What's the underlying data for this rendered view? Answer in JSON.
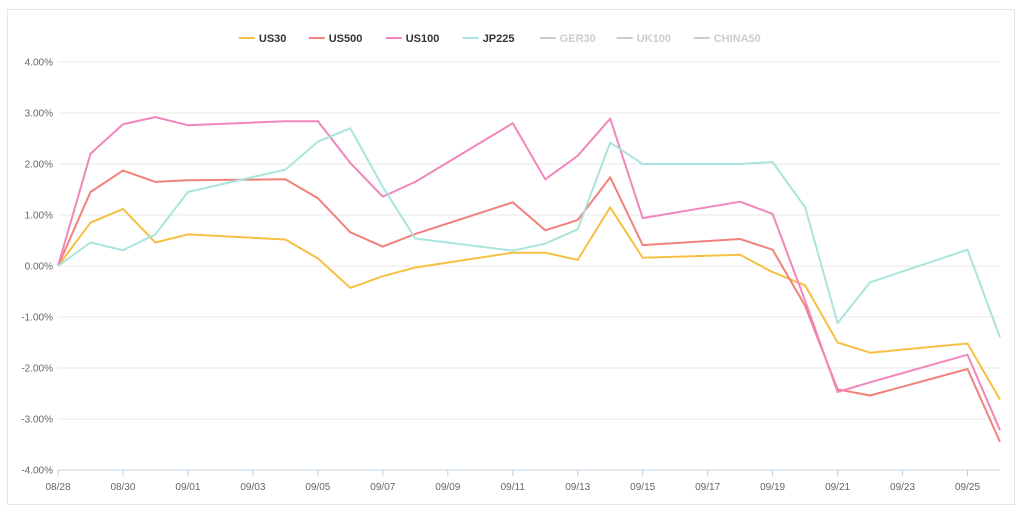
{
  "chart_data": {
    "type": "line",
    "title": "",
    "xlabel": "",
    "ylabel": "",
    "ylim": [
      -4.0,
      4.0
    ],
    "yticks": [
      "4.00%",
      "3.00%",
      "2.00%",
      "1.00%",
      "0.00%",
      "-1.00%",
      "-2.00%",
      "-3.00%",
      "-4.00%"
    ],
    "xticks": [
      "08/28",
      "08/30",
      "09/01",
      "09/03",
      "09/05",
      "09/07",
      "09/09",
      "09/11",
      "09/13",
      "09/15",
      "09/17",
      "09/19",
      "09/21",
      "09/23",
      "09/25"
    ],
    "x_start": "2025-08-28",
    "legend_position": "top-center",
    "grid": true,
    "series": [
      {
        "name": "US30",
        "color": "#f6c142",
        "visible": true,
        "x": [
          0,
          1,
          2,
          3,
          4,
          7,
          8,
          9,
          10,
          11,
          14,
          15,
          16,
          17,
          18,
          21,
          22,
          23,
          24,
          25,
          28,
          29
        ],
        "values": [
          0.0,
          0.85,
          1.12,
          0.46,
          0.62,
          0.52,
          0.15,
          -0.43,
          -0.2,
          -0.03,
          0.26,
          0.26,
          0.12,
          1.15,
          0.16,
          0.22,
          -0.12,
          -0.38,
          -1.5,
          -1.7,
          -1.52,
          -2.62
        ]
      },
      {
        "name": "US500",
        "color": "#f0827a",
        "visible": true,
        "x": [
          0,
          1,
          2,
          3,
          4,
          7,
          8,
          9,
          10,
          11,
          14,
          15,
          16,
          17,
          18,
          21,
          22,
          23,
          24,
          25,
          28,
          29
        ],
        "values": [
          0.0,
          1.45,
          1.87,
          1.65,
          1.68,
          1.7,
          1.33,
          0.66,
          0.38,
          0.63,
          1.25,
          0.7,
          0.9,
          1.74,
          0.41,
          0.53,
          0.32,
          -0.78,
          -2.42,
          -2.54,
          -2.02,
          -3.45
        ]
      },
      {
        "name": "US100",
        "color": "#f186bd",
        "visible": true,
        "x": [
          0,
          1,
          2,
          3,
          4,
          7,
          8,
          9,
          10,
          11,
          14,
          15,
          16,
          17,
          18,
          21,
          22,
          23,
          24,
          25,
          28,
          29
        ],
        "values": [
          0.0,
          2.2,
          2.78,
          2.92,
          2.76,
          2.84,
          2.84,
          2.02,
          1.36,
          1.65,
          2.8,
          1.7,
          2.16,
          2.89,
          0.94,
          1.26,
          1.02,
          -0.68,
          -2.47,
          -2.28,
          -1.74,
          -3.22
        ]
      },
      {
        "name": "JP225",
        "color": "#a9e5dc",
        "visible": true,
        "x": [
          0,
          1,
          2,
          3,
          4,
          7,
          8,
          9,
          10,
          11,
          14,
          15,
          16,
          17,
          18,
          21,
          22,
          23,
          24,
          25,
          28,
          29
        ],
        "values": [
          0.0,
          0.46,
          0.31,
          0.62,
          1.45,
          1.89,
          2.44,
          2.7,
          1.55,
          0.54,
          0.3,
          0.44,
          0.72,
          2.42,
          2.0,
          2.0,
          2.04,
          1.15,
          -1.12,
          -0.32,
          0.32,
          -1.4
        ]
      },
      {
        "name": "GER30",
        "color": "#cccccc",
        "visible": false,
        "x": [],
        "values": []
      },
      {
        "name": "UK100",
        "color": "#cccccc",
        "visible": false,
        "x": [],
        "values": []
      },
      {
        "name": "CHINA50",
        "color": "#cccccc",
        "visible": false,
        "x": [],
        "values": []
      }
    ]
  }
}
